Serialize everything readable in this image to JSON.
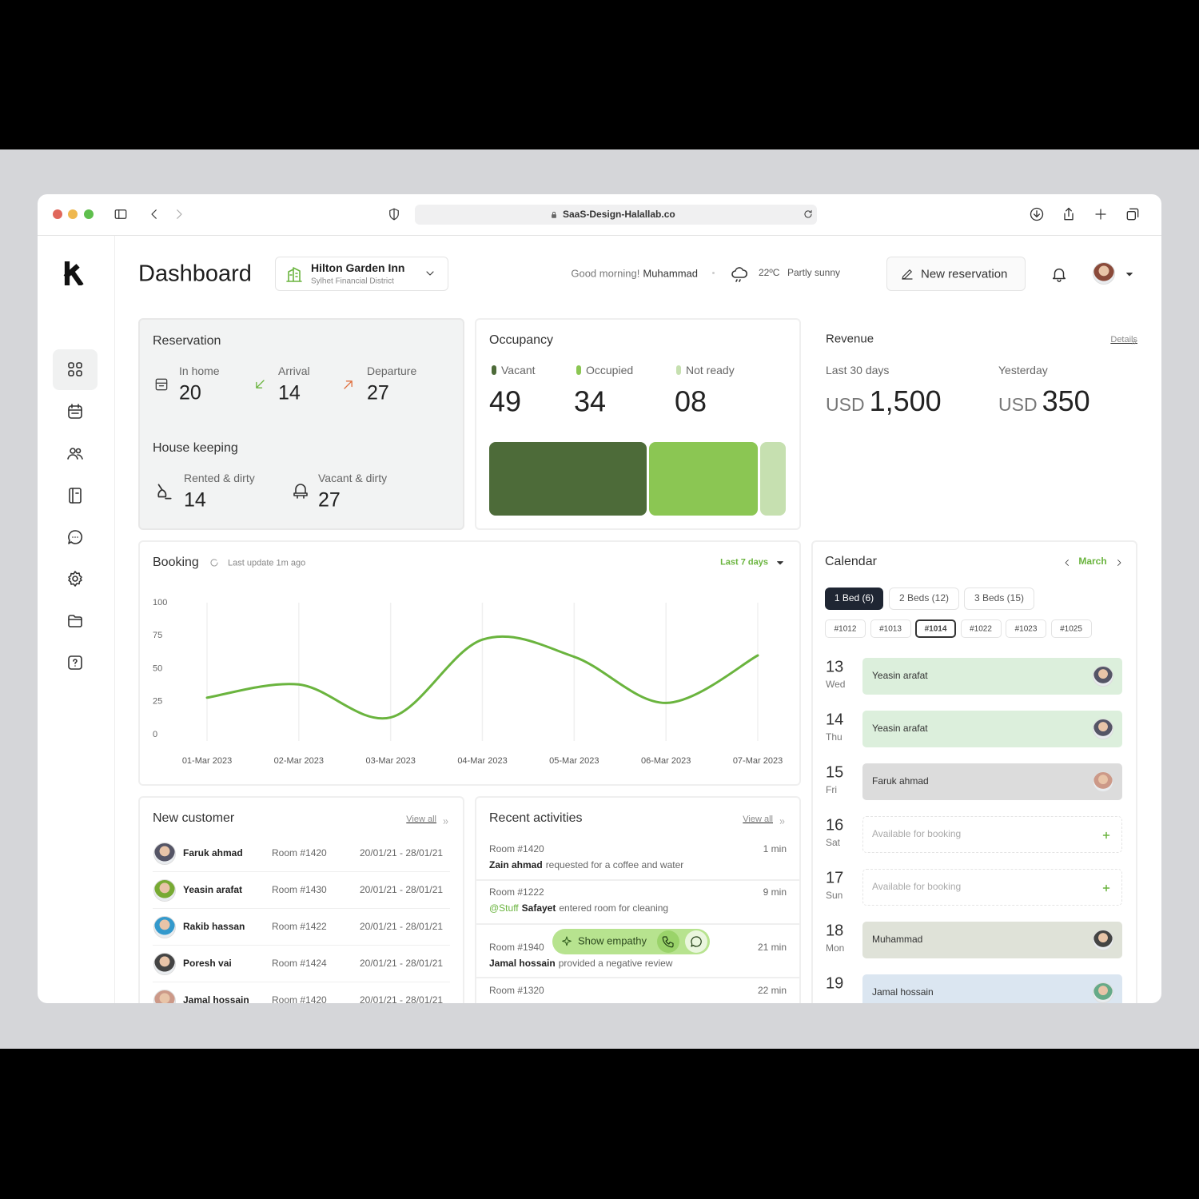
{
  "browser": {
    "url": "SaaS-Design-Halallab.co"
  },
  "header": {
    "title": "Dashboard",
    "hotel": {
      "name": "Hilton Garden Inn",
      "location": "Sylhet Financial District"
    },
    "greeting": "Good morning!",
    "user": "Muhammad",
    "temperature": "22ºC",
    "weather": "Partly sunny",
    "new_reservation": "New reservation"
  },
  "reservation": {
    "title": "Reservation",
    "stats": [
      {
        "label": "In home",
        "value": 20
      },
      {
        "label": "Arrival",
        "value": 14
      },
      {
        "label": "Departure",
        "value": 27
      }
    ],
    "housekeeping_title": "House keeping",
    "housekeeping": [
      {
        "label": "Rented & dirty",
        "value": 14
      },
      {
        "label": "Vacant & dirty",
        "value": 27
      }
    ]
  },
  "occupancy": {
    "title": "Occupancy",
    "categories": [
      "Vacant",
      "Occupied",
      "Not ready"
    ],
    "values": [
      49,
      34,
      8
    ],
    "value_labels": [
      "49",
      "34",
      "08"
    ],
    "colors": [
      "#4d6b39",
      "#8bc653",
      "#c6e0b0"
    ]
  },
  "revenue": {
    "title": "Revenue",
    "details": "Details",
    "items": [
      {
        "label": "Last 30 days",
        "currency": "USD",
        "amount": "1,500"
      },
      {
        "label": "Yesterday",
        "currency": "USD",
        "amount": "350"
      }
    ]
  },
  "chart_data": {
    "type": "line",
    "title": "Booking",
    "subtitle": "Last update 1m ago",
    "range_selector": "Last 7 days",
    "categories": [
      "01-Mar 2023",
      "02-Mar 2023",
      "03-Mar 2023",
      "04-Mar 2023",
      "05-Mar 2023",
      "06-Mar 2023",
      "07-Mar 2023"
    ],
    "values": [
      28,
      38,
      13,
      72,
      59,
      24,
      60
    ],
    "color": "#6ab43e",
    "ylim": [
      0,
      100
    ],
    "yticks": [
      0,
      25,
      50,
      75,
      100
    ],
    "grid": true
  },
  "calendar": {
    "title": "Calendar",
    "month": "March",
    "bed_filters": [
      "1 Bed (6)",
      "2 Beds (12)",
      "3 Beds (15)"
    ],
    "rooms": [
      "#1012",
      "#1013",
      "#1014",
      "#1022",
      "#1023",
      "#1025"
    ],
    "days": [
      {
        "date": 13,
        "weekday": "Wed",
        "booking": "Yeasin arafat",
        "color": "#dcefdc"
      },
      {
        "date": 14,
        "weekday": "Thu",
        "booking": "Yeasin arafat",
        "color": "#dcefdc"
      },
      {
        "date": 15,
        "weekday": "Fri",
        "booking": "Faruk ahmad",
        "color": "#dcdcdc"
      },
      {
        "date": 16,
        "weekday": "Sat",
        "booking": "Available for booking"
      },
      {
        "date": 17,
        "weekday": "Sun",
        "booking": "Available for booking"
      },
      {
        "date": 18,
        "weekday": "Mon",
        "booking": "Muhammad",
        "color": "#dfe2d8"
      },
      {
        "date": 19,
        "booking": "Jamal hossain",
        "color": "#dbe6f1"
      }
    ]
  },
  "customers": {
    "title": "New customer",
    "view_all": "View all",
    "rows": [
      [
        "Faruk ahmad",
        "Room #1420",
        "20/01/21 - 28/01/21"
      ],
      [
        "Yeasin arafat",
        "Room #1430",
        "20/01/21 - 28/01/21"
      ],
      [
        "Rakib hassan",
        "Room #1422",
        "20/01/21 - 28/01/21"
      ],
      [
        "Poresh vai",
        "Room #1424",
        "20/01/21 - 28/01/21"
      ],
      [
        "Jamal hossain",
        "Room #1420",
        "20/01/21 - 28/01/21"
      ]
    ]
  },
  "activities": {
    "title": "Recent activities",
    "view_all": "View all",
    "items": [
      {
        "room": "Room #1420",
        "time": "1 min",
        "actor": "Zain ahmad",
        "text": "requested for a coffee and water"
      },
      {
        "room": "Room #1222",
        "time": "9 min",
        "tag": "@Stuff",
        "actor": "Safayet",
        "text": "entered room for cleaning"
      },
      {
        "room": "Room #1940",
        "time": "21 min",
        "actor": "Jamal hossain",
        "text": "provided a negative review",
        "action": "Show empathy"
      },
      {
        "room": "Room #1320",
        "time": "22 min"
      }
    ]
  }
}
